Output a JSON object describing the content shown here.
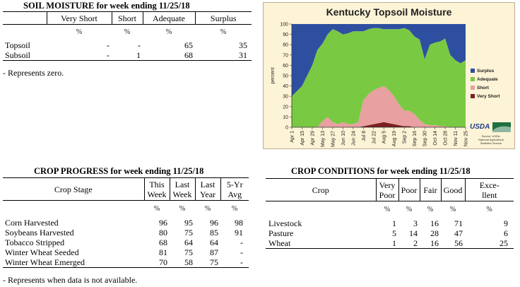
{
  "soil": {
    "title": "SOIL MOISTURE for week ending 11/25/18",
    "headers": [
      "Very Short",
      "Short",
      "Adequate",
      "Surplus"
    ],
    "units": [
      "%",
      "%",
      "%",
      "%"
    ],
    "rows": [
      {
        "label": "Topsoil",
        "values": [
          "-",
          "-",
          "65",
          "35"
        ]
      },
      {
        "label": "Subsoil",
        "values": [
          "-",
          "1",
          "68",
          "31"
        ]
      }
    ],
    "note": "- Represents zero."
  },
  "progress": {
    "title": "CROP PROGRESS for week ending 11/25/18",
    "stage_header": "Crop Stage",
    "headers": [
      [
        "This",
        "Week"
      ],
      [
        "Last",
        "Week"
      ],
      [
        "Last",
        "Year"
      ],
      [
        "5-Yr",
        "Avg"
      ]
    ],
    "units": [
      "%",
      "%",
      "%",
      "%"
    ],
    "rows": [
      {
        "label": "Corn Harvested",
        "values": [
          "96",
          "95",
          "96",
          "98"
        ]
      },
      {
        "label": "Soybeans Harvested",
        "values": [
          "80",
          "75",
          "85",
          "91"
        ]
      },
      {
        "label": "Tobacco Stripped",
        "values": [
          "68",
          "64",
          "64",
          "-"
        ]
      },
      {
        "label": "Winter Wheat Seeded",
        "values": [
          "81",
          "75",
          "87",
          "-"
        ]
      },
      {
        "label": "Winter Wheat Emerged",
        "values": [
          "70",
          "58",
          "75",
          "-"
        ]
      }
    ],
    "note": "- Represents when data is not available."
  },
  "conditions": {
    "title": "CROP CONDITIONS for week ending 11/25/18",
    "crop_header": "Crop",
    "headers": [
      [
        "Very",
        "Poor"
      ],
      [
        "Poor",
        ""
      ],
      [
        "Fair",
        ""
      ],
      [
        "Good",
        ""
      ],
      [
        "Exce-",
        "llent"
      ]
    ],
    "units": [
      "%",
      "%",
      "%",
      "%",
      "%"
    ],
    "rows": [
      {
        "label": "Livestock",
        "values": [
          "1",
          "3",
          "16",
          "71",
          "9"
        ]
      },
      {
        "label": "Pasture",
        "values": [
          "5",
          "14",
          "28",
          "47",
          "6"
        ]
      },
      {
        "label": "Wheat",
        "values": [
          "1",
          "2",
          "16",
          "56",
          "25"
        ]
      }
    ]
  },
  "chart_data": {
    "type": "area",
    "title": "Kentucky Topsoil Moisture",
    "ylabel": "percent",
    "ylim": [
      0,
      100
    ],
    "yticks": [
      0,
      10,
      20,
      30,
      40,
      50,
      60,
      70,
      80,
      90,
      100
    ],
    "x": [
      "Apr 1",
      "Apr 8",
      "Apr 15",
      "Apr 22",
      "Apr 29",
      "May 6",
      "May 13",
      "May 20",
      "May 27",
      "Jun 3",
      "Jun 10",
      "Jun 17",
      "Jun 24",
      "Jul 1",
      "Jul 8",
      "Jul 15",
      "Jul 22",
      "Jul 29",
      "Aug 5",
      "Aug 12",
      "Aug 19",
      "Aug 26",
      "Sep 2",
      "Sep 9",
      "Sep 16",
      "Sep 23",
      "Sep 30",
      "Oct 7",
      "Oct 14",
      "Oct 21",
      "Oct 28",
      "Nov 4",
      "Nov 11",
      "Nov 18",
      "Nov 25"
    ],
    "xtick_labels": [
      "Apr 1",
      "Apr 15",
      "Apr 29",
      "May 13",
      "May 27",
      "Jun 10",
      "Jun 24",
      "Jul 8",
      "Jul 22",
      "Aug 5",
      "Aug 19",
      "Sep 2",
      "Sep 16",
      "Sep 30",
      "Oct 14",
      "Oct 28",
      "Nov 11",
      "Nov 25"
    ],
    "series": [
      {
        "name": "Very Short",
        "color": "#7b2020",
        "values": [
          0,
          0,
          0,
          0,
          0,
          0,
          0,
          0,
          0,
          0,
          0,
          0,
          0,
          0,
          1,
          2,
          3,
          4,
          5,
          4,
          3,
          2,
          1,
          1,
          0,
          0,
          0,
          0,
          0,
          0,
          0,
          0,
          0,
          0,
          0
        ]
      },
      {
        "name": "Short",
        "color": "#e8a0a0",
        "values": [
          0,
          0,
          0,
          0,
          0,
          0,
          6,
          10,
          5,
          3,
          5,
          3,
          3,
          5,
          25,
          30,
          33,
          34,
          35,
          32,
          27,
          20,
          15,
          15,
          13,
          7,
          3,
          2,
          2,
          1,
          1,
          0,
          0,
          0,
          0
        ]
      },
      {
        "name": "Adequate",
        "color": "#7ac943",
        "values": [
          30,
          35,
          40,
          50,
          60,
          75,
          75,
          80,
          90,
          90,
          85,
          88,
          90,
          88,
          67,
          63,
          60,
          58,
          55,
          59,
          65,
          73,
          80,
          78,
          75,
          78,
          63,
          78,
          80,
          82,
          85,
          70,
          65,
          62,
          65
        ]
      },
      {
        "name": "Surplus",
        "color": "#2e4fa0",
        "values": [
          70,
          65,
          60,
          50,
          40,
          25,
          19,
          10,
          5,
          7,
          10,
          9,
          7,
          7,
          7,
          5,
          4,
          4,
          5,
          5,
          5,
          5,
          4,
          6,
          12,
          15,
          34,
          20,
          18,
          17,
          14,
          30,
          35,
          38,
          35
        ]
      }
    ],
    "legend_position": "right",
    "logo_text": "USDA",
    "source_text": [
      "Source: USDA,",
      "National Agricultural",
      "Statistics Service"
    ],
    "grid": false
  }
}
